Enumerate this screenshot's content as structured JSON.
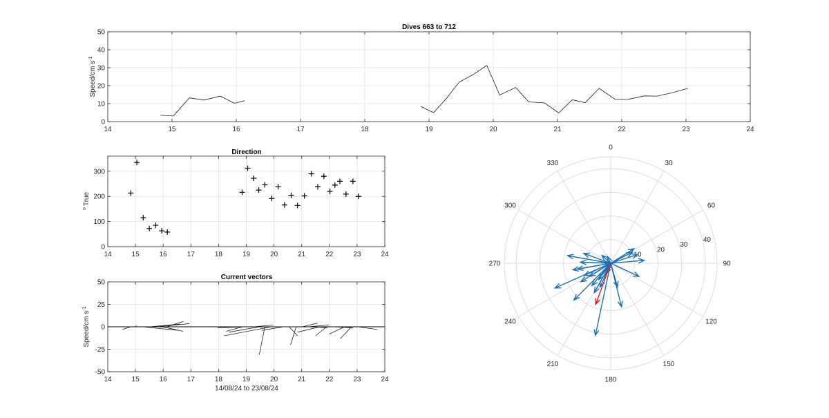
{
  "chart_data": [
    {
      "type": "line",
      "title": "Dives 663 to 712",
      "ylabel": "Speed/cm s",
      "ylabel_sup": "-1",
      "xlim": [
        14,
        24
      ],
      "ylim": [
        0,
        50
      ],
      "xticks": [
        "14",
        "15",
        "16",
        "17",
        "18",
        "19",
        "20",
        "21",
        "22",
        "23",
        "24"
      ],
      "yticks": [
        "0",
        "10",
        "20",
        "30",
        "40",
        "50"
      ],
      "grid": true,
      "series": [
        {
          "x": [
            14.82,
            15.02,
            15.27,
            15.5,
            15.75,
            15.97,
            16.13
          ],
          "y": [
            3.5,
            3.1,
            13.2,
            12.0,
            14.2,
            10.2,
            11.6
          ]
        },
        {
          "x": [
            18.87,
            19.07,
            19.27,
            19.47,
            19.67,
            19.9,
            20.1,
            20.35,
            20.55,
            20.8,
            21.02,
            21.23,
            21.43,
            21.65,
            21.9,
            22.1,
            22.35,
            22.55,
            22.8,
            23.03
          ],
          "y": [
            8.5,
            5.0,
            12.8,
            22.0,
            25.8,
            31.2,
            14.8,
            19.0,
            11.0,
            10.4,
            4.8,
            12.2,
            10.5,
            18.5,
            12.3,
            12.4,
            14.3,
            14.2,
            16.2,
            18.5
          ]
        }
      ]
    },
    {
      "type": "scatter",
      "title": "Direction",
      "ylabel": "True",
      "ylabel_sup": "o",
      "xlim": [
        14,
        24
      ],
      "ylim": [
        0,
        360
      ],
      "xticks": [
        "14",
        "15",
        "16",
        "17",
        "18",
        "19",
        "20",
        "21",
        "22",
        "23",
        "24"
      ],
      "yticks": [
        "0",
        "100",
        "200",
        "300"
      ],
      "ytick_values": [
        0,
        100,
        200,
        300
      ],
      "grid": true,
      "x": [
        14.83,
        15.05,
        15.28,
        15.5,
        15.73,
        15.95,
        16.15,
        18.85,
        19.05,
        19.27,
        19.45,
        19.67,
        19.92,
        20.15,
        20.38,
        20.62,
        20.85,
        21.1,
        21.35,
        21.58,
        21.8,
        22.02,
        22.2,
        22.38,
        22.6,
        22.85,
        23.05
      ],
      "y": [
        213,
        335,
        115,
        72,
        85,
        63,
        58,
        216,
        312,
        272,
        225,
        246,
        192,
        238,
        166,
        204,
        164,
        202,
        290,
        238,
        280,
        220,
        245,
        260,
        209,
        260,
        200
      ]
    },
    {
      "type": "quiver",
      "title": "Current vectors",
      "ylabel": "Speed/cm s",
      "ylabel_sup": "-1",
      "xlabel": "14/08/24 to 23/08/24",
      "xlim": [
        14,
        24
      ],
      "ylim": [
        -50,
        50
      ],
      "xticks": [
        "14",
        "15",
        "16",
        "17",
        "18",
        "19",
        "20",
        "21",
        "22",
        "23",
        "24"
      ],
      "yticks": [
        "-50",
        "-25",
        "0",
        "25",
        "50"
      ],
      "ytick_values": [
        -50,
        -25,
        0,
        25,
        50
      ],
      "grid": true,
      "baseline_x": [
        14.0,
        24.0
      ],
      "vectors": [
        {
          "x": 14.83,
          "u": -0.3,
          "v": -3
        },
        {
          "x": 15.0,
          "u": 0.03,
          "v": 1.5
        },
        {
          "x": 15.27,
          "u": 1.3,
          "v": -4
        },
        {
          "x": 15.5,
          "u": 1.1,
          "v": 3
        },
        {
          "x": 15.75,
          "u": 1.2,
          "v": 3.5
        },
        {
          "x": 15.97,
          "u": 0.75,
          "v": -5
        },
        {
          "x": 16.13,
          "u": 0.6,
          "v": 6
        },
        {
          "x": 18.87,
          "u": -0.6,
          "v": -5
        },
        {
          "x": 19.07,
          "u": -1.1,
          "v": -1
        },
        {
          "x": 19.27,
          "u": 0.7,
          "v": 2
        },
        {
          "x": 19.47,
          "u": -1.1,
          "v": -6
        },
        {
          "x": 19.67,
          "u": -0.2,
          "v": -31
        },
        {
          "x": 19.9,
          "u": -1.7,
          "v": -10
        },
        {
          "x": 20.1,
          "u": 0.7,
          "v": 0
        },
        {
          "x": 20.35,
          "u": -0.8,
          "v": -4
        },
        {
          "x": 20.55,
          "u": 0.3,
          "v": -10
        },
        {
          "x": 20.8,
          "u": -0.2,
          "v": -20
        },
        {
          "x": 21.02,
          "u": 0.55,
          "v": 4
        },
        {
          "x": 21.23,
          "u": 0.75,
          "v": 2
        },
        {
          "x": 21.43,
          "u": 0.5,
          "v": -1
        },
        {
          "x": 21.65,
          "u": -0.8,
          "v": -6
        },
        {
          "x": 21.9,
          "u": -0.4,
          "v": -10
        },
        {
          "x": 22.1,
          "u": 0.75,
          "v": -1
        },
        {
          "x": 22.35,
          "u": 0.45,
          "v": -1
        },
        {
          "x": 22.55,
          "u": -0.55,
          "v": -8
        },
        {
          "x": 22.8,
          "u": -0.4,
          "v": -13
        },
        {
          "x": 23.03,
          "u": 0.7,
          "v": -3
        }
      ]
    },
    {
      "type": "polar",
      "theta_direction": "clockwise",
      "theta_zero": "top",
      "rmax": 45,
      "rings": [
        10,
        20,
        30,
        40
      ],
      "ring_labels": [
        "10",
        "20",
        "30",
        "40"
      ],
      "angle_labels": [
        "0",
        "30",
        "60",
        "90",
        "120",
        "150",
        "180",
        "210",
        "240",
        "270",
        "300",
        "330"
      ],
      "angle_values": [
        0,
        30,
        60,
        90,
        120,
        150,
        180,
        210,
        240,
        270,
        300,
        330
      ],
      "grid": true,
      "arrow_colors": {
        "main": "#1a6fb5",
        "highlight": "#e0191c",
        "grid": "#dcdcdc"
      },
      "arrows": [
        {
          "dir": 213,
          "speed": 3.5
        },
        {
          "dir": 335,
          "speed": 3.1
        },
        {
          "dir": 115,
          "speed": 13.2
        },
        {
          "dir": 72,
          "speed": 12.0
        },
        {
          "dir": 85,
          "speed": 14.2
        },
        {
          "dir": 63,
          "speed": 10.2
        },
        {
          "dir": 58,
          "speed": 11.6
        },
        {
          "dir": 216,
          "speed": 8.5
        },
        {
          "dir": 312,
          "speed": 5.0
        },
        {
          "dir": 272,
          "speed": 12.8
        },
        {
          "dir": 225,
          "speed": 22.0
        },
        {
          "dir": 246,
          "speed": 25.8
        },
        {
          "dir": 192,
          "speed": 31.2
        },
        {
          "dir": 238,
          "speed": 14.8
        },
        {
          "dir": 166,
          "speed": 19.0
        },
        {
          "dir": 204,
          "speed": 11.0
        },
        {
          "dir": 164,
          "speed": 10.4
        },
        {
          "dir": 202,
          "speed": 4.8
        },
        {
          "dir": 290,
          "speed": 12.2
        },
        {
          "dir": 238,
          "speed": 10.5
        },
        {
          "dir": 280,
          "speed": 18.5
        },
        {
          "dir": 220,
          "speed": 12.3
        },
        {
          "dir": 245,
          "speed": 12.4
        },
        {
          "dir": 260,
          "speed": 14.3
        },
        {
          "dir": 209,
          "speed": 14.2
        },
        {
          "dir": 260,
          "speed": 16.2
        },
        {
          "dir": 200,
          "speed": 18.5,
          "highlight": true
        }
      ]
    }
  ]
}
